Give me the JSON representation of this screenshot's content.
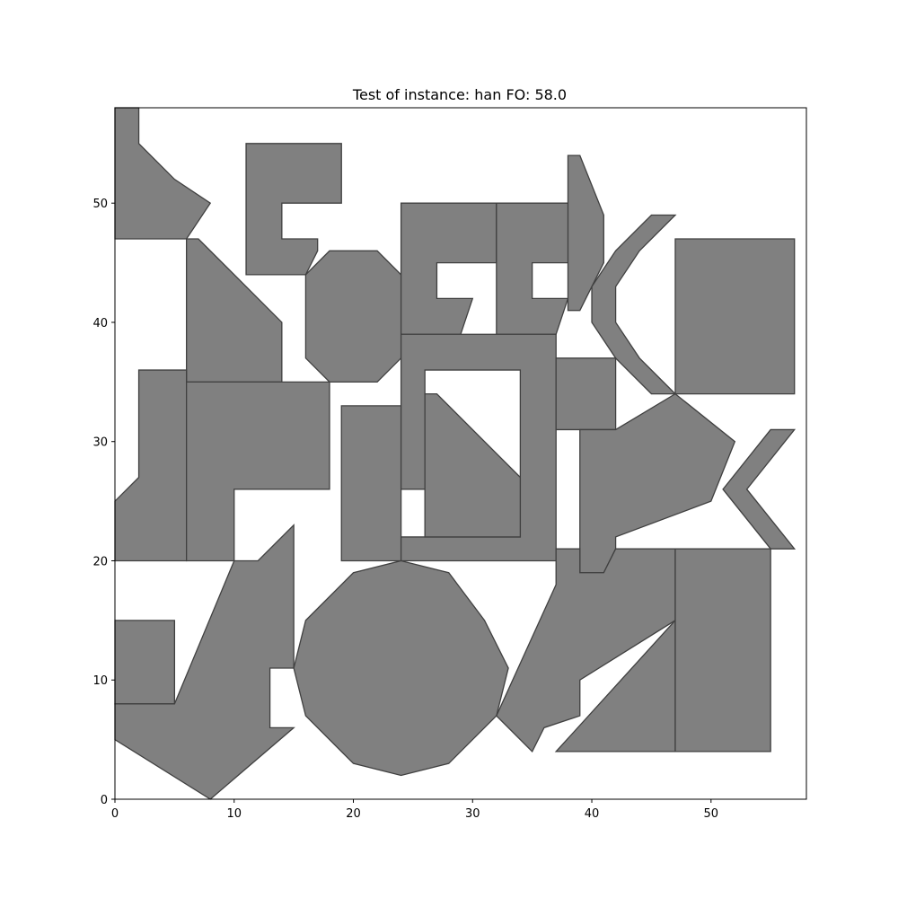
{
  "chart_data": {
    "type": "polygon-layout",
    "title": "Test of instance: han  FO: 58.0",
    "xlabel": "",
    "ylabel": "",
    "xlim": [
      0,
      58
    ],
    "ylim": [
      0,
      58
    ],
    "x_ticks": [
      0,
      10,
      20,
      30,
      40,
      50
    ],
    "y_ticks": [
      0,
      10,
      20,
      30,
      40,
      50
    ],
    "grid": false,
    "fill_color": "#808080",
    "edge_color": "#404040",
    "polygons": [
      [
        [
          0,
          58
        ],
        [
          2,
          58
        ],
        [
          2,
          55
        ],
        [
          5,
          52
        ],
        [
          8,
          50
        ],
        [
          6,
          47
        ],
        [
          0,
          47
        ]
      ],
      [
        [
          11,
          55
        ],
        [
          19,
          55
        ],
        [
          19,
          50
        ],
        [
          14,
          50
        ],
        [
          14,
          47
        ],
        [
          17,
          47
        ],
        [
          17,
          46
        ],
        [
          16,
          44
        ],
        [
          11,
          44
        ]
      ],
      [
        [
          6,
          47
        ],
        [
          7,
          47
        ],
        [
          14,
          40
        ],
        [
          14,
          35
        ],
        [
          6,
          35
        ]
      ],
      [
        [
          18,
          46
        ],
        [
          22,
          46
        ],
        [
          24,
          44
        ],
        [
          24,
          37
        ],
        [
          22,
          35
        ],
        [
          18,
          35
        ],
        [
          16,
          37
        ],
        [
          16,
          44
        ]
      ],
      [
        [
          24,
          50
        ],
        [
          32,
          50
        ],
        [
          32,
          45
        ],
        [
          27,
          45
        ],
        [
          27,
          42
        ],
        [
          30,
          42
        ],
        [
          29,
          39
        ],
        [
          24,
          39
        ]
      ],
      [
        [
          32,
          50
        ],
        [
          40,
          50
        ],
        [
          40,
          45
        ],
        [
          35,
          45
        ],
        [
          35,
          42
        ],
        [
          38,
          42
        ],
        [
          37,
          39
        ],
        [
          32,
          39
        ]
      ],
      [
        [
          38,
          54
        ],
        [
          39,
          54
        ],
        [
          41,
          49
        ],
        [
          41,
          45
        ],
        [
          39,
          41
        ],
        [
          38,
          41
        ]
      ],
      [
        [
          45,
          49
        ],
        [
          47,
          49
        ],
        [
          44,
          46
        ],
        [
          42,
          43
        ],
        [
          42,
          40
        ],
        [
          44,
          37
        ],
        [
          47,
          34
        ],
        [
          45,
          34
        ],
        [
          42,
          37
        ],
        [
          40,
          40
        ],
        [
          40,
          43
        ],
        [
          42,
          46
        ]
      ],
      [
        [
          47,
          47
        ],
        [
          57,
          47
        ],
        [
          57,
          34
        ],
        [
          47,
          34
        ]
      ],
      [
        [
          2,
          36
        ],
        [
          6,
          36
        ],
        [
          6,
          20
        ],
        [
          0,
          20
        ],
        [
          0,
          25
        ],
        [
          2,
          27
        ]
      ],
      [
        [
          6,
          35
        ],
        [
          18,
          35
        ],
        [
          18,
          26
        ],
        [
          10,
          26
        ],
        [
          10,
          20
        ],
        [
          6,
          20
        ]
      ],
      [
        [
          19,
          33
        ],
        [
          24,
          33
        ],
        [
          24,
          20
        ],
        [
          19,
          20
        ]
      ],
      [
        [
          24,
          39
        ],
        [
          37,
          39
        ],
        [
          37,
          20
        ],
        [
          24,
          20
        ],
        [
          24,
          22
        ],
        [
          34,
          22
        ],
        [
          34,
          36
        ],
        [
          26,
          36
        ],
        [
          26,
          26
        ],
        [
          24,
          26
        ]
      ],
      [
        [
          26,
          34
        ],
        [
          27,
          34
        ],
        [
          34,
          27
        ],
        [
          34,
          22
        ],
        [
          26,
          22
        ]
      ],
      [
        [
          37,
          37
        ],
        [
          42,
          37
        ],
        [
          42,
          31
        ],
        [
          37,
          31
        ]
      ],
      [
        [
          39,
          31
        ],
        [
          42,
          31
        ],
        [
          47,
          34
        ],
        [
          52,
          30
        ],
        [
          50,
          25
        ],
        [
          42,
          22
        ],
        [
          42,
          21
        ],
        [
          41,
          19
        ],
        [
          39,
          19
        ]
      ],
      [
        [
          55,
          31
        ],
        [
          57,
          31
        ],
        [
          53,
          26
        ],
        [
          57,
          21
        ],
        [
          55,
          21
        ],
        [
          51,
          26
        ]
      ],
      [
        [
          0,
          15
        ],
        [
          5,
          15
        ],
        [
          5,
          8
        ],
        [
          0,
          8
        ]
      ],
      [
        [
          10,
          20
        ],
        [
          12,
          20
        ],
        [
          15,
          23
        ],
        [
          15,
          11
        ],
        [
          13,
          11
        ],
        [
          13,
          6
        ],
        [
          15,
          6
        ],
        [
          8,
          0
        ],
        [
          0,
          5
        ],
        [
          0,
          8
        ],
        [
          5,
          8
        ]
      ],
      [
        [
          24,
          20
        ],
        [
          28,
          19
        ],
        [
          31,
          15
        ],
        [
          33,
          11
        ],
        [
          32,
          7
        ],
        [
          28,
          3
        ],
        [
          24,
          2
        ],
        [
          20,
          3
        ],
        [
          16,
          7
        ],
        [
          15,
          11
        ],
        [
          16,
          15
        ],
        [
          20,
          19
        ]
      ],
      [
        [
          37,
          21
        ],
        [
          39,
          21
        ],
        [
          39,
          19
        ],
        [
          41,
          19
        ],
        [
          42,
          21
        ],
        [
          47,
          21
        ],
        [
          47,
          15
        ],
        [
          39,
          10
        ],
        [
          39,
          7
        ],
        [
          36,
          6
        ],
        [
          35,
          4
        ],
        [
          32,
          7
        ],
        [
          37,
          18
        ]
      ],
      [
        [
          47,
          15
        ],
        [
          47,
          4
        ],
        [
          37,
          4
        ]
      ],
      [
        [
          47,
          21
        ],
        [
          55,
          21
        ],
        [
          55,
          4
        ],
        [
          47,
          4
        ]
      ]
    ]
  }
}
